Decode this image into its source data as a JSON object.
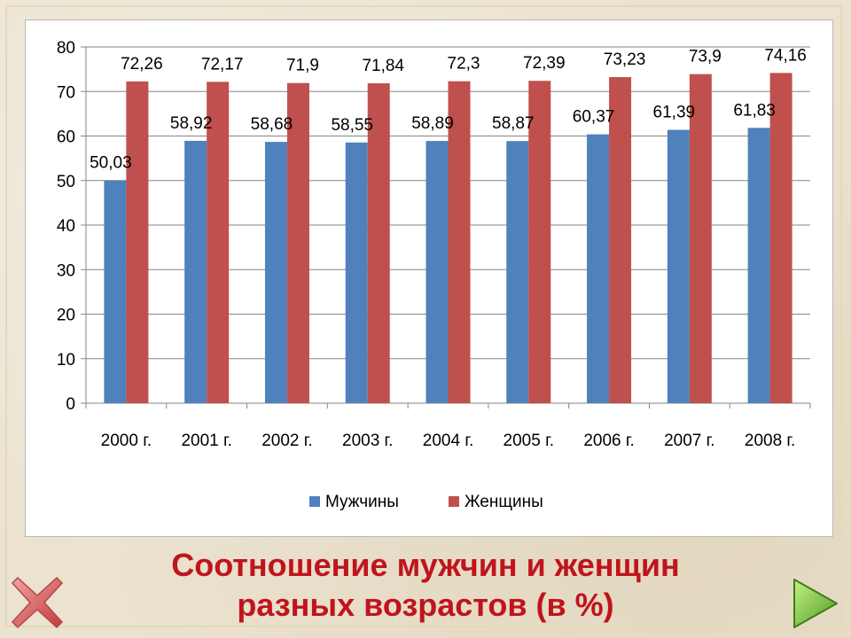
{
  "chart_data": {
    "type": "bar",
    "categories": [
      "2000 г.",
      "2001 г.",
      "2002 г.",
      "2003 г.",
      "2004 г.",
      "2005 г.",
      "2006 г.",
      "2007 г.",
      "2008 г."
    ],
    "series": [
      {
        "name": "Мужчины",
        "color": "#4f81bd",
        "values": [
          50.03,
          58.92,
          58.68,
          58.55,
          58.89,
          58.87,
          60.37,
          61.39,
          61.83
        ],
        "labels": [
          "50,03",
          "58,92",
          "58,68",
          "58,55",
          "58,89",
          "58,87",
          "60,37",
          "61,39",
          "61,83"
        ]
      },
      {
        "name": "Женщины",
        "color": "#c0504d",
        "values": [
          72.26,
          72.17,
          71.9,
          71.84,
          72.3,
          72.39,
          73.23,
          73.9,
          74.16
        ],
        "labels": [
          "72,26",
          "72,17",
          "71,9",
          "71,84",
          "72,3",
          "72,39",
          "73,23",
          "73,9",
          "74,16"
        ]
      }
    ],
    "ylim": [
      0,
      80
    ],
    "yticks": [
      "0",
      "10",
      "20",
      "30",
      "40",
      "50",
      "60",
      "70",
      "80"
    ],
    "grid": true,
    "legend": "bottom"
  },
  "caption": {
    "line1": "Соотношение мужчин и женщин",
    "line2": "разных возрастов (в %)"
  },
  "nav": {
    "close_icon": "close-x-icon",
    "next_icon": "play-next-icon"
  }
}
